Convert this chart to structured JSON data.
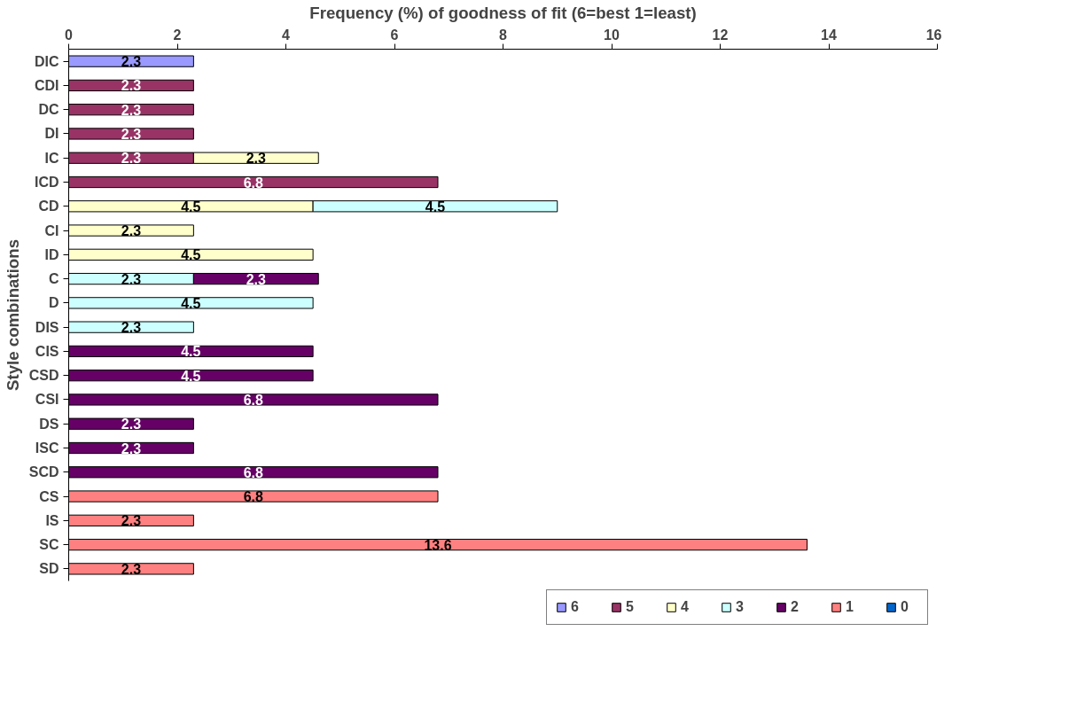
{
  "chart_data": {
    "type": "bar",
    "orientation": "horizontal",
    "stacked": true,
    "xlabel": "Frequency (%) of goodness of fit (6=best 1=least)",
    "ylabel": "Style combinations",
    "categories": [
      "DIC",
      "CDI",
      "DC",
      "DI",
      "IC",
      "ICD",
      "CD",
      "CI",
      "ID",
      "C",
      "D",
      "DIS",
      "CIS",
      "CSD",
      "CSI",
      "DS",
      "ISC",
      "SCD",
      "CS",
      "IS",
      "SC",
      "SD"
    ],
    "series": [
      {
        "name": "6",
        "color": "#9999ff",
        "values": [
          2.3,
          null,
          null,
          null,
          null,
          null,
          null,
          null,
          null,
          null,
          null,
          null,
          null,
          null,
          null,
          null,
          null,
          null,
          null,
          null,
          null,
          null
        ]
      },
      {
        "name": "5",
        "color": "#993366",
        "values": [
          null,
          2.3,
          2.3,
          2.3,
          2.3,
          6.8,
          null,
          null,
          null,
          null,
          null,
          null,
          null,
          null,
          null,
          null,
          null,
          null,
          null,
          null,
          null,
          null
        ]
      },
      {
        "name": "4",
        "color": "#ffffcc",
        "values": [
          null,
          null,
          null,
          null,
          2.3,
          null,
          4.5,
          2.3,
          4.5,
          null,
          null,
          null,
          null,
          null,
          null,
          null,
          null,
          null,
          null,
          null,
          null,
          null
        ]
      },
      {
        "name": "3",
        "color": "#ccffff",
        "values": [
          null,
          null,
          null,
          null,
          null,
          null,
          4.5,
          null,
          null,
          2.3,
          4.5,
          2.3,
          null,
          null,
          null,
          null,
          null,
          null,
          null,
          null,
          null,
          null
        ]
      },
      {
        "name": "2",
        "color": "#660066",
        "values": [
          null,
          null,
          null,
          null,
          null,
          null,
          null,
          null,
          null,
          2.3,
          null,
          null,
          4.5,
          4.5,
          6.8,
          2.3,
          2.3,
          6.8,
          null,
          null,
          null,
          null
        ]
      },
      {
        "name": "1",
        "color": "#ff8080",
        "values": [
          null,
          null,
          null,
          null,
          null,
          null,
          null,
          null,
          null,
          null,
          null,
          null,
          null,
          null,
          null,
          null,
          null,
          null,
          6.8,
          2.3,
          13.6,
          2.3
        ]
      },
      {
        "name": "0",
        "color": "#0066cc",
        "values": [
          null,
          null,
          null,
          null,
          null,
          null,
          null,
          null,
          null,
          null,
          null,
          null,
          null,
          null,
          null,
          null,
          null,
          null,
          null,
          null,
          null,
          null
        ]
      }
    ],
    "xlim": [
      0,
      16
    ],
    "xticks": [
      0,
      2,
      4,
      6,
      8,
      10,
      12,
      14,
      16
    ],
    "grid": false,
    "legend": "bottom",
    "data_labels": true
  }
}
